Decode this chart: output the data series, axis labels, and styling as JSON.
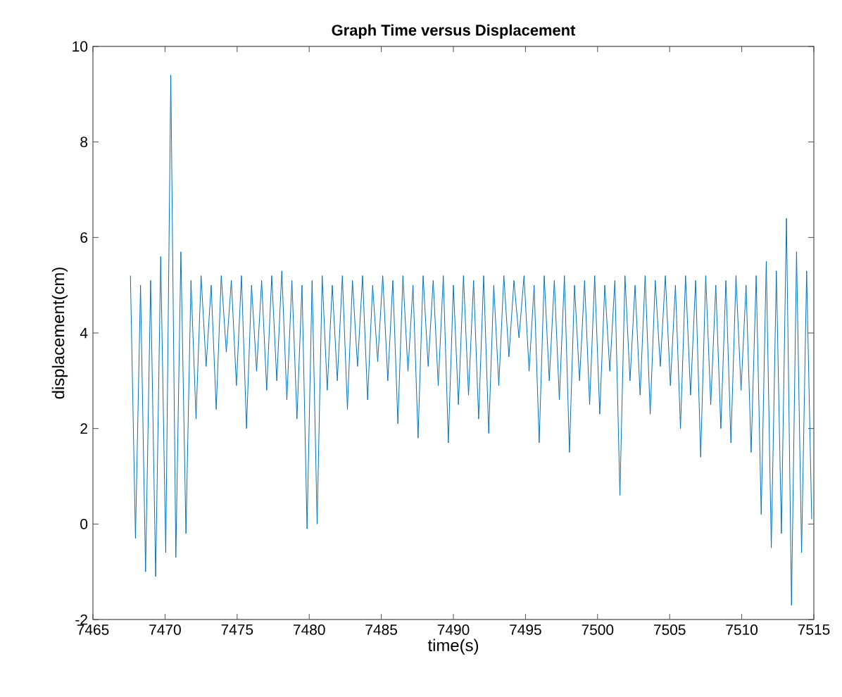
{
  "chart_data": {
    "type": "line",
    "title": "Graph Time versus Displacement",
    "xlabel": "time(s)",
    "ylabel": "displacement(cm)",
    "color": "#0072bd",
    "line_style": "solid",
    "marker": "none",
    "x": [
      7467.6,
      7467.95,
      7468.3,
      7468.65,
      7469,
      7469.35,
      7469.7,
      7470.05,
      7470.4,
      7470.75,
      7471.1,
      7471.45,
      7471.8,
      7472.15,
      7472.5,
      7472.85,
      7473.2,
      7473.55,
      7473.9,
      7474.25,
      7474.6,
      7474.95,
      7475.3,
      7475.65,
      7476,
      7476.35,
      7476.7,
      7477.05,
      7477.4,
      7477.75,
      7478.1,
      7478.45,
      7478.8,
      7479.15,
      7479.5,
      7479.85,
      7480.2,
      7480.55,
      7480.9,
      7481.25,
      7481.6,
      7481.95,
      7482.3,
      7482.65,
      7483,
      7483.35,
      7483.7,
      7484.05,
      7484.4,
      7484.75,
      7485.1,
      7485.45,
      7485.8,
      7486.15,
      7486.5,
      7486.85,
      7487.2,
      7487.55,
      7487.9,
      7488.25,
      7488.6,
      7488.95,
      7489.3,
      7489.65,
      7490,
      7490.35,
      7490.7,
      7491.05,
      7491.4,
      7491.75,
      7492.1,
      7492.45,
      7492.8,
      7493.15,
      7493.5,
      7493.85,
      7494.2,
      7494.55,
      7494.9,
      7495.25,
      7495.6,
      7495.95,
      7496.3,
      7496.65,
      7497,
      7497.35,
      7497.7,
      7498.05,
      7498.4,
      7498.75,
      7499.1,
      7499.45,
      7499.8,
      7500.15,
      7500.5,
      7500.85,
      7501.2,
      7501.55,
      7501.9,
      7502.25,
      7502.6,
      7502.95,
      7503.3,
      7503.65,
      7504,
      7504.35,
      7504.7,
      7505.05,
      7505.4,
      7505.75,
      7506.1,
      7506.45,
      7506.8,
      7507.15,
      7507.5,
      7507.85,
      7508.2,
      7508.55,
      7508.9,
      7509.25,
      7509.6,
      7509.95,
      7510.3,
      7510.65,
      7511,
      7511.35,
      7511.7,
      7512.05,
      7512.4,
      7512.75,
      7513.1,
      7513.45,
      7513.8,
      7514.15,
      7514.5,
      7514.85
    ],
    "values": [
      5.2,
      -0.3,
      5.0,
      -1.0,
      5.1,
      -1.1,
      5.6,
      -0.6,
      9.4,
      -0.7,
      5.7,
      -0.2,
      5.1,
      2.2,
      5.2,
      3.3,
      5.0,
      2.4,
      5.2,
      3.6,
      5.1,
      2.9,
      5.2,
      2.0,
      5.0,
      3.2,
      5.1,
      2.8,
      5.2,
      3.0,
      5.3,
      2.6,
      5.1,
      2.2,
      5.0,
      -0.1,
      5.1,
      0.0,
      5.2,
      2.8,
      5.0,
      3.0,
      5.2,
      2.4,
      5.1,
      3.3,
      5.2,
      2.6,
      5.0,
      3.4,
      5.2,
      3.0,
      5.1,
      2.1,
      5.2,
      3.2,
      5.0,
      1.8,
      5.2,
      3.3,
      5.1,
      2.9,
      5.2,
      1.7,
      5.0,
      2.5,
      5.2,
      2.7,
      5.1,
      2.2,
      5.2,
      1.9,
      5.0,
      2.9,
      5.2,
      3.5,
      5.1,
      3.9,
      5.2,
      3.2,
      5.0,
      1.7,
      5.2,
      3.0,
      5.1,
      2.6,
      5.2,
      1.5,
      5.0,
      3.0,
      5.1,
      2.5,
      5.2,
      2.3,
      5.0,
      3.2,
      5.1,
      0.6,
      5.2,
      3.0,
      5.0,
      2.7,
      5.2,
      2.3,
      5.1,
      3.3,
      5.2,
      2.9,
      5.0,
      2.0,
      5.2,
      2.7,
      5.1,
      1.4,
      5.2,
      2.5,
      5.0,
      2.0,
      5.1,
      1.7,
      5.2,
      2.8,
      5.0,
      1.5,
      5.2,
      0.2,
      5.5,
      -0.5,
      5.3,
      -0.2,
      6.4,
      -1.7,
      5.7,
      -0.6,
      5.3,
      0.1
    ],
    "xlim": [
      7465,
      7515
    ],
    "ylim": [
      -2,
      10
    ],
    "xticks": [
      7465,
      7470,
      7475,
      7480,
      7485,
      7490,
      7495,
      7500,
      7505,
      7510,
      7515
    ],
    "yticks": [
      -2,
      0,
      2,
      4,
      6,
      8,
      10
    ]
  }
}
